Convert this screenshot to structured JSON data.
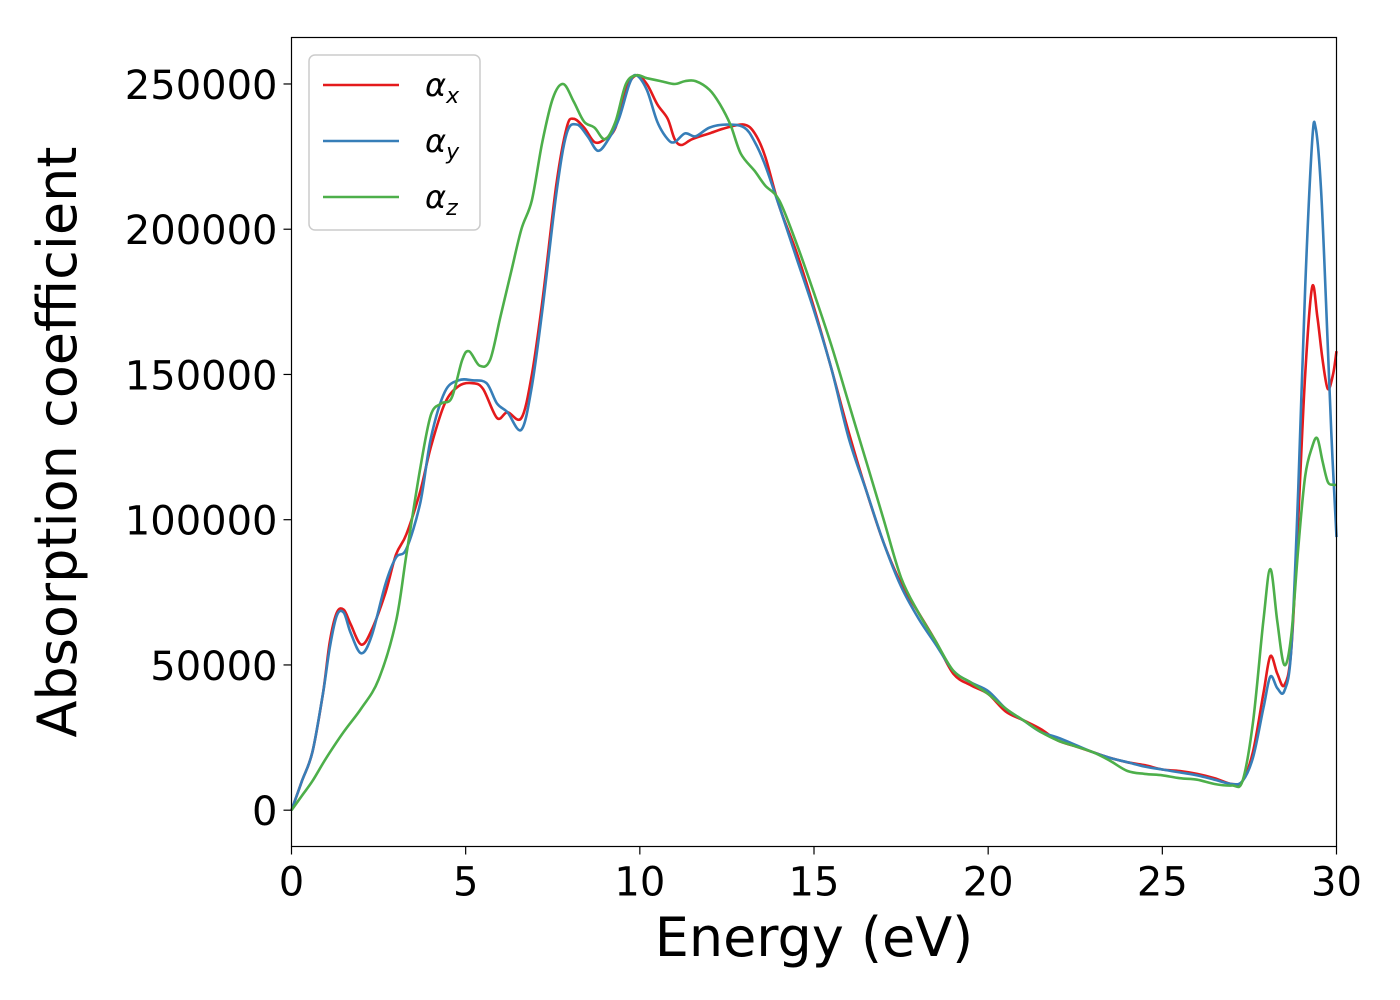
{
  "chart_data": {
    "type": "line",
    "title": "",
    "xlabel": "Energy (eV)",
    "ylabel": "Absorption coefficient",
    "xlim": [
      0,
      30
    ],
    "ylim": [
      -12500,
      266000
    ],
    "xticks": [
      0,
      5,
      10,
      15,
      20,
      25,
      30
    ],
    "xtick_labels": [
      "0",
      "5",
      "10",
      "15",
      "20",
      "25",
      "30"
    ],
    "yticks": [
      0,
      50000,
      100000,
      150000,
      200000,
      250000
    ],
    "ytick_labels": [
      "0",
      "50000",
      "100000",
      "150000",
      "200000",
      "250000"
    ],
    "grid": false,
    "legend_position": "top-left",
    "series": [
      {
        "name": "αx",
        "base": "α",
        "sub": "x",
        "color": "#e41a1c",
        "points": [
          [
            0,
            0
          ],
          [
            0.3,
            10000
          ],
          [
            0.6,
            20000
          ],
          [
            0.9,
            40000
          ],
          [
            1.1,
            58000
          ],
          [
            1.3,
            68000
          ],
          [
            1.5,
            69000
          ],
          [
            1.7,
            64000
          ],
          [
            2.0,
            57000
          ],
          [
            2.3,
            62000
          ],
          [
            2.7,
            75000
          ],
          [
            3.0,
            88000
          ],
          [
            3.3,
            95000
          ],
          [
            3.7,
            110000
          ],
          [
            4.0,
            125000
          ],
          [
            4.4,
            140000
          ],
          [
            4.8,
            146000
          ],
          [
            5.2,
            147000
          ],
          [
            5.5,
            145000
          ],
          [
            5.9,
            135000
          ],
          [
            6.2,
            137000
          ],
          [
            6.6,
            135000
          ],
          [
            6.9,
            150000
          ],
          [
            7.2,
            175000
          ],
          [
            7.6,
            215000
          ],
          [
            7.9,
            235000
          ],
          [
            8.1,
            238000
          ],
          [
            8.4,
            235000
          ],
          [
            8.7,
            230000
          ],
          [
            9.0,
            231000
          ],
          [
            9.3,
            235000
          ],
          [
            9.6,
            248000
          ],
          [
            9.9,
            253000
          ],
          [
            10.2,
            250000
          ],
          [
            10.5,
            243000
          ],
          [
            10.8,
            238000
          ],
          [
            11.0,
            231000
          ],
          [
            11.2,
            229000
          ],
          [
            11.5,
            231000
          ],
          [
            12.0,
            233000
          ],
          [
            12.5,
            235000
          ],
          [
            13.0,
            236000
          ],
          [
            13.3,
            233000
          ],
          [
            13.6,
            225000
          ],
          [
            14.0,
            208000
          ],
          [
            14.5,
            192000
          ],
          [
            15.0,
            173000
          ],
          [
            15.5,
            152000
          ],
          [
            16.0,
            130000
          ],
          [
            16.5,
            110000
          ],
          [
            17.0,
            92000
          ],
          [
            17.5,
            78000
          ],
          [
            18.0,
            68000
          ],
          [
            18.5,
            58000
          ],
          [
            19.0,
            47000
          ],
          [
            19.5,
            43000
          ],
          [
            20.0,
            40000
          ],
          [
            20.5,
            34000
          ],
          [
            21.0,
            31000
          ],
          [
            21.5,
            28000
          ],
          [
            22.0,
            24000
          ],
          [
            22.5,
            22000
          ],
          [
            23.0,
            20000
          ],
          [
            23.5,
            18000
          ],
          [
            24.0,
            16500
          ],
          [
            24.5,
            15500
          ],
          [
            25.0,
            14000
          ],
          [
            25.5,
            13500
          ],
          [
            26.0,
            12500
          ],
          [
            26.5,
            11000
          ],
          [
            27.0,
            9000
          ],
          [
            27.3,
            10000
          ],
          [
            27.6,
            20000
          ],
          [
            27.9,
            40000
          ],
          [
            28.1,
            53000
          ],
          [
            28.3,
            47000
          ],
          [
            28.5,
            43000
          ],
          [
            28.7,
            55000
          ],
          [
            28.9,
            100000
          ],
          [
            29.1,
            150000
          ],
          [
            29.3,
            180000
          ],
          [
            29.45,
            170000
          ],
          [
            29.6,
            155000
          ],
          [
            29.75,
            145000
          ],
          [
            29.9,
            150000
          ],
          [
            30.0,
            158000
          ]
        ]
      },
      {
        "name": "αy",
        "base": "α",
        "sub": "y",
        "color": "#377eb8",
        "points": [
          [
            0,
            0
          ],
          [
            0.3,
            10000
          ],
          [
            0.6,
            20000
          ],
          [
            0.9,
            40000
          ],
          [
            1.1,
            56000
          ],
          [
            1.3,
            67000
          ],
          [
            1.5,
            68000
          ],
          [
            1.7,
            61000
          ],
          [
            2.0,
            54000
          ],
          [
            2.3,
            60000
          ],
          [
            2.7,
            78000
          ],
          [
            3.0,
            87000
          ],
          [
            3.3,
            90000
          ],
          [
            3.7,
            106000
          ],
          [
            4.0,
            128000
          ],
          [
            4.4,
            144000
          ],
          [
            4.8,
            148000
          ],
          [
            5.2,
            148000
          ],
          [
            5.6,
            147000
          ],
          [
            5.9,
            140000
          ],
          [
            6.2,
            137000
          ],
          [
            6.6,
            131000
          ],
          [
            6.9,
            146000
          ],
          [
            7.2,
            172000
          ],
          [
            7.6,
            212000
          ],
          [
            7.9,
            233000
          ],
          [
            8.2,
            236000
          ],
          [
            8.5,
            232000
          ],
          [
            8.8,
            227000
          ],
          [
            9.1,
            231000
          ],
          [
            9.4,
            238000
          ],
          [
            9.7,
            250000
          ],
          [
            9.9,
            253000
          ],
          [
            10.2,
            248000
          ],
          [
            10.5,
            237000
          ],
          [
            10.8,
            231000
          ],
          [
            11.0,
            230000
          ],
          [
            11.3,
            233000
          ],
          [
            11.6,
            232000
          ],
          [
            12.0,
            235000
          ],
          [
            12.5,
            236000
          ],
          [
            13.0,
            235000
          ],
          [
            13.3,
            230000
          ],
          [
            13.6,
            222000
          ],
          [
            14.0,
            208000
          ],
          [
            14.5,
            190000
          ],
          [
            15.0,
            172000
          ],
          [
            15.5,
            152000
          ],
          [
            16.0,
            128000
          ],
          [
            16.5,
            110000
          ],
          [
            17.0,
            92000
          ],
          [
            17.5,
            77000
          ],
          [
            18.0,
            66000
          ],
          [
            18.5,
            57000
          ],
          [
            19.0,
            48000
          ],
          [
            19.5,
            44000
          ],
          [
            20.0,
            41000
          ],
          [
            20.5,
            35000
          ],
          [
            21.0,
            31000
          ],
          [
            21.5,
            27000
          ],
          [
            22.0,
            25000
          ],
          [
            22.5,
            22500
          ],
          [
            23.0,
            20000
          ],
          [
            23.5,
            18000
          ],
          [
            24.0,
            16500
          ],
          [
            24.5,
            15000
          ],
          [
            25.0,
            14000
          ],
          [
            25.5,
            13000
          ],
          [
            26.0,
            12000
          ],
          [
            26.5,
            10500
          ],
          [
            27.0,
            9000
          ],
          [
            27.3,
            10000
          ],
          [
            27.6,
            18000
          ],
          [
            27.9,
            35000
          ],
          [
            28.1,
            46000
          ],
          [
            28.3,
            42000
          ],
          [
            28.5,
            41000
          ],
          [
            28.7,
            55000
          ],
          [
            28.9,
            110000
          ],
          [
            29.1,
            180000
          ],
          [
            29.3,
            230000
          ],
          [
            29.4,
            235000
          ],
          [
            29.55,
            215000
          ],
          [
            29.7,
            175000
          ],
          [
            29.85,
            130000
          ],
          [
            30.0,
            94000
          ]
        ]
      },
      {
        "name": "αz",
        "base": "α",
        "sub": "z",
        "color": "#4daf4a",
        "points": [
          [
            0,
            0
          ],
          [
            0.3,
            5000
          ],
          [
            0.6,
            10000
          ],
          [
            1.0,
            18000
          ],
          [
            1.5,
            27000
          ],
          [
            2.0,
            35000
          ],
          [
            2.5,
            45000
          ],
          [
            3.0,
            65000
          ],
          [
            3.3,
            88000
          ],
          [
            3.7,
            118000
          ],
          [
            4.0,
            136000
          ],
          [
            4.3,
            140000
          ],
          [
            4.6,
            142000
          ],
          [
            4.9,
            155000
          ],
          [
            5.1,
            158000
          ],
          [
            5.4,
            153000
          ],
          [
            5.7,
            155000
          ],
          [
            6.0,
            170000
          ],
          [
            6.3,
            185000
          ],
          [
            6.6,
            200000
          ],
          [
            6.9,
            210000
          ],
          [
            7.2,
            230000
          ],
          [
            7.5,
            245000
          ],
          [
            7.8,
            250000
          ],
          [
            8.1,
            244000
          ],
          [
            8.4,
            237000
          ],
          [
            8.7,
            235000
          ],
          [
            9.0,
            231000
          ],
          [
            9.3,
            237000
          ],
          [
            9.6,
            250000
          ],
          [
            9.9,
            253000
          ],
          [
            10.2,
            252000
          ],
          [
            10.6,
            251000
          ],
          [
            11.0,
            250000
          ],
          [
            11.3,
            251000
          ],
          [
            11.6,
            251000
          ],
          [
            12.0,
            248000
          ],
          [
            12.3,
            243000
          ],
          [
            12.6,
            236000
          ],
          [
            12.9,
            226000
          ],
          [
            13.3,
            220000
          ],
          [
            13.6,
            215000
          ],
          [
            14.0,
            210000
          ],
          [
            14.5,
            195000
          ],
          [
            15.0,
            178000
          ],
          [
            15.5,
            160000
          ],
          [
            16.0,
            140000
          ],
          [
            16.5,
            120000
          ],
          [
            17.0,
            100000
          ],
          [
            17.5,
            80000
          ],
          [
            18.0,
            68000
          ],
          [
            18.5,
            58000
          ],
          [
            19.0,
            48000
          ],
          [
            19.5,
            44000
          ],
          [
            20.0,
            40000
          ],
          [
            20.5,
            35000
          ],
          [
            21.0,
            31000
          ],
          [
            21.5,
            27000
          ],
          [
            22.0,
            24000
          ],
          [
            22.5,
            22000
          ],
          [
            23.0,
            20000
          ],
          [
            23.5,
            17000
          ],
          [
            24.0,
            13500
          ],
          [
            24.5,
            12500
          ],
          [
            25.0,
            12000
          ],
          [
            25.5,
            11000
          ],
          [
            26.0,
            10500
          ],
          [
            26.5,
            9000
          ],
          [
            27.0,
            8500
          ],
          [
            27.3,
            10000
          ],
          [
            27.6,
            30000
          ],
          [
            27.9,
            65000
          ],
          [
            28.1,
            83000
          ],
          [
            28.3,
            65000
          ],
          [
            28.5,
            50000
          ],
          [
            28.7,
            60000
          ],
          [
            28.9,
            90000
          ],
          [
            29.1,
            115000
          ],
          [
            29.3,
            125000
          ],
          [
            29.45,
            128000
          ],
          [
            29.6,
            120000
          ],
          [
            29.75,
            113000
          ],
          [
            29.9,
            112000
          ],
          [
            30.0,
            112000
          ]
        ]
      }
    ]
  }
}
